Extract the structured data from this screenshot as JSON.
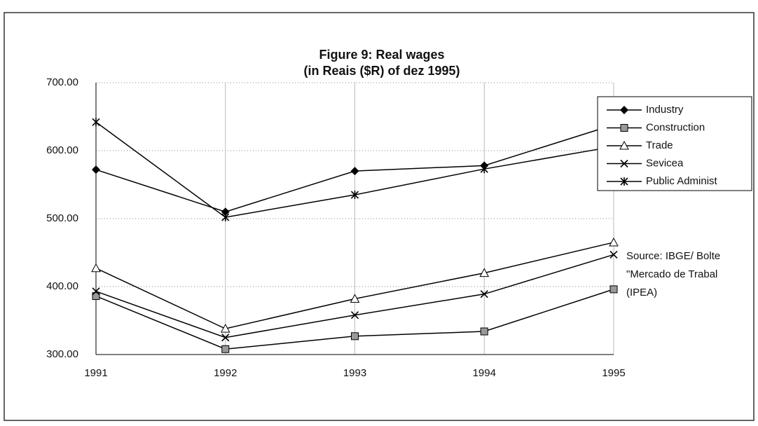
{
  "chart_data": {
    "type": "line",
    "title": "Figure 9:  Real wages",
    "subtitle": "(in Reais ($R) of dez 1995)",
    "categories": [
      "1991",
      "1992",
      "1993",
      "1994",
      "1995"
    ],
    "series": [
      {
        "name": "Industry",
        "color": "#000000",
        "marker": "diamond",
        "values": [
          572,
          510,
          570,
          578,
          638
        ]
      },
      {
        "name": "Construction",
        "color": "#000000",
        "marker": "square",
        "values": [
          386,
          308,
          327,
          334,
          396
        ]
      },
      {
        "name": "Trade",
        "color": "#000000",
        "marker": "triangle",
        "values": [
          427,
          338,
          382,
          420,
          465
        ]
      },
      {
        "name": "Sevicea",
        "color": "#000000",
        "marker": "x",
        "values": [
          393,
          325,
          358,
          389,
          447
        ]
      },
      {
        "name": "Public Administ",
        "color": "#000000",
        "marker": "star",
        "values": [
          642,
          502,
          535,
          573,
          606
        ]
      }
    ],
    "ylim": [
      300,
      700
    ],
    "yticks": [
      {
        "value": 300,
        "label": "300.00"
      },
      {
        "value": 400,
        "label": "400.00"
      },
      {
        "value": 500,
        "label": "500.00"
      },
      {
        "value": 600,
        "label": "600.00"
      },
      {
        "value": 700,
        "label": "700.00"
      }
    ],
    "grid": true,
    "legend": "right",
    "annotations": [
      "Source: IBGE/ Bolte",
      "\"Mercado de Trabal",
      "(IPEA)"
    ]
  }
}
